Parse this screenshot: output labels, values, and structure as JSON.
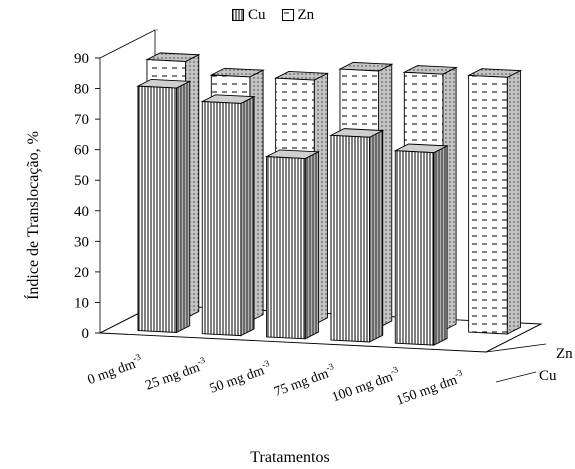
{
  "chart_data": {
    "type": "bar",
    "style": "3d-clustered-depth",
    "title": "",
    "xlabel": "Tratamentos",
    "ylabel": "Índice de Translocação, %",
    "ylim": [
      0,
      90
    ],
    "yticks": [
      "0",
      "10",
      "20",
      "30",
      "40",
      "50",
      "60",
      "70",
      "80",
      "90"
    ],
    "categories": [
      "0 mg dm",
      "25 mg dm",
      "50 mg dm",
      "75 mg dm",
      "100 mg dm",
      "150 mg dm"
    ],
    "category_superscript": "-3",
    "depth_labels": [
      "Zn",
      "Cu"
    ],
    "legend_position": "top-center",
    "series": [
      {
        "name": "Cu",
        "pattern": "vertical-lines",
        "values": [
          80,
          76,
          59,
          67,
          63,
          0
        ]
      },
      {
        "name": "Zn",
        "pattern": "dashed",
        "values": [
          84,
          80,
          80,
          84,
          84,
          84
        ]
      }
    ]
  },
  "colors": {
    "face": "#ffffff",
    "side": "#bfbfbf",
    "top": "#d9d9d9",
    "ink": "#000000"
  }
}
